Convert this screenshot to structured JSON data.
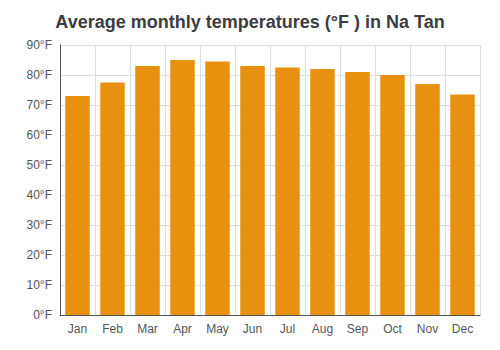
{
  "chart_data": {
    "type": "bar",
    "title": "Average monthly temperatures (°F ) in Na Tan",
    "categories": [
      "Jan",
      "Feb",
      "Mar",
      "Apr",
      "May",
      "Jun",
      "Jul",
      "Aug",
      "Sep",
      "Oct",
      "Nov",
      "Dec"
    ],
    "values": [
      73,
      77.5,
      83,
      85,
      84.5,
      83,
      82.5,
      82,
      81,
      80,
      77,
      73.5
    ],
    "color": "#E89010",
    "ylim": [
      0,
      90
    ],
    "yticks": [
      {
        "value": 0,
        "label": "0°F"
      },
      {
        "value": 10,
        "label": "10°F"
      },
      {
        "value": 20,
        "label": "20°F"
      },
      {
        "value": 30,
        "label": "30°F"
      },
      {
        "value": 40,
        "label": "40°F"
      },
      {
        "value": 50,
        "label": "50°F"
      },
      {
        "value": 60,
        "label": "60°F"
      },
      {
        "value": 70,
        "label": "70°F"
      },
      {
        "value": 80,
        "label": "80°F"
      },
      {
        "value": 90,
        "label": "90°F"
      }
    ],
    "grid": true
  }
}
